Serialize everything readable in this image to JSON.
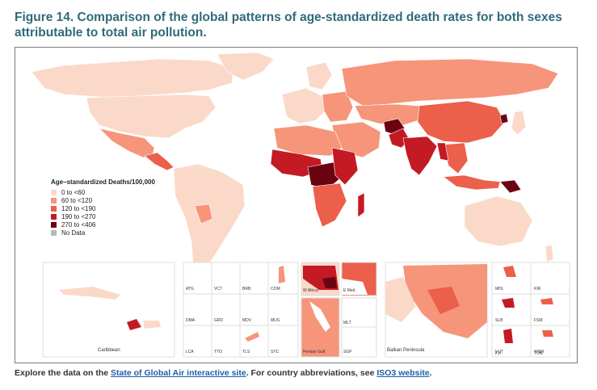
{
  "title": "Figure 14. Comparison of the global patterns of age-standardized death rates for both sexes attributable to total air pollution.",
  "legend": {
    "title": "Age–standardized Deaths/100,000",
    "items": [
      {
        "label": "0 to <60",
        "color": "#fbd9c9"
      },
      {
        "label": "60 to <120",
        "color": "#f6957a"
      },
      {
        "label": "120 to <190",
        "color": "#ec5f4a"
      },
      {
        "label": "190 to <270",
        "color": "#c41a24"
      },
      {
        "label": "270 to <406",
        "color": "#6b0311"
      },
      {
        "label": "No Data",
        "color": "#b9b9b9"
      }
    ]
  },
  "insets": {
    "caribbean": "Caribbean",
    "w_africa": "W Africa",
    "e_med": "E Med.",
    "persian_gulf": "Persian Gulf",
    "balkan": "Balkan Peninsula",
    "small": [
      "ATG",
      "VCT",
      "BRB",
      "COM",
      "DMA",
      "GRD",
      "MDV",
      "MUS",
      "LCA",
      "TTO",
      "TLS",
      "SYC",
      "MLT",
      "SGP"
    ],
    "pacific": [
      "MHL",
      "KIR",
      "SLB",
      "FSM",
      "VUT",
      "WSM",
      "FJI",
      "TON"
    ]
  },
  "footer": {
    "prefix": "Explore the data on the ",
    "link1": "State of Global Air interactive site",
    "middle": ". For country abbreviations, see ",
    "link2": "ISO3 website",
    "suffix": "."
  }
}
